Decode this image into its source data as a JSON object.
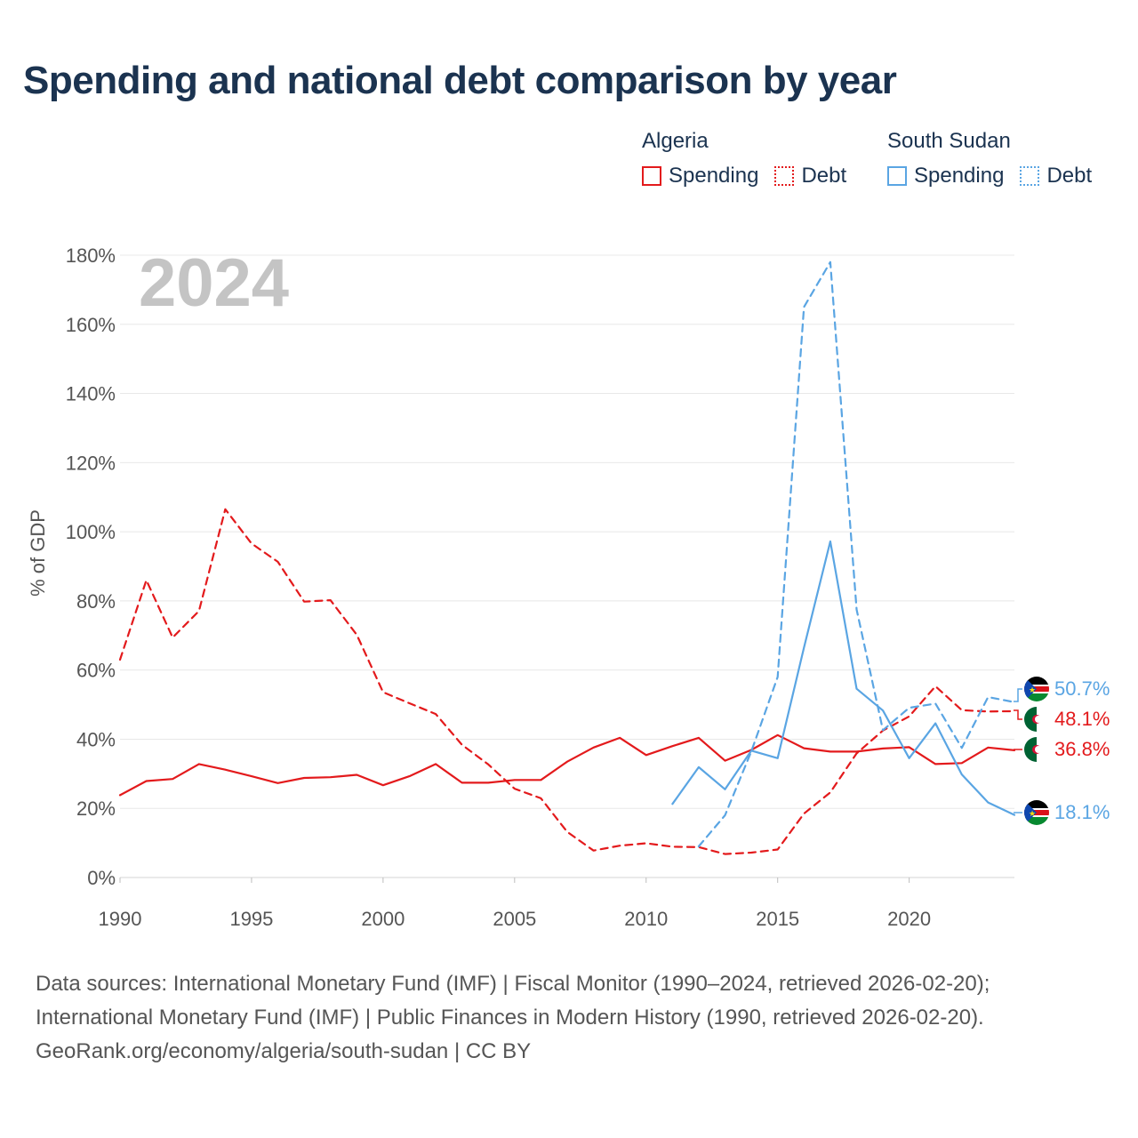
{
  "chart_data": {
    "type": "line",
    "title": "Spending and national debt comparison by year",
    "year_label": "2024",
    "ylabel": "% of GDP",
    "xlabel": "",
    "xlim": [
      1990,
      2024
    ],
    "ylim": [
      0,
      180
    ],
    "y_ticks": [
      0,
      20,
      40,
      60,
      80,
      100,
      120,
      140,
      160,
      180
    ],
    "y_tick_labels": [
      "0%",
      "20%",
      "40%",
      "60%",
      "80%",
      "100%",
      "120%",
      "140%",
      "160%",
      "180%"
    ],
    "x_ticks": [
      1990,
      1995,
      2000,
      2005,
      2010,
      2015,
      2020
    ],
    "x_tick_labels": [
      "1990",
      "1995",
      "2000",
      "2005",
      "2010",
      "2015",
      "2020"
    ],
    "grid": true,
    "legend": {
      "placement": "top-right",
      "groups": [
        {
          "country": "Algeria",
          "spending_label": "Spending",
          "debt_label": "Debt"
        },
        {
          "country": "South Sudan",
          "spending_label": "Spending",
          "debt_label": "Debt"
        }
      ]
    },
    "series": [
      {
        "name": "Algeria Spending",
        "country": "Algeria",
        "metric": "Spending",
        "style": "solid",
        "color": "#e31a1c",
        "end_label": "36.8%",
        "x": [
          1990,
          1991,
          1992,
          1993,
          1994,
          1995,
          1996,
          1997,
          1998,
          1999,
          2000,
          2001,
          2002,
          2003,
          2004,
          2005,
          2006,
          2007,
          2008,
          2009,
          2010,
          2011,
          2012,
          2013,
          2014,
          2015,
          2016,
          2017,
          2018,
          2019,
          2020,
          2021,
          2022,
          2023,
          2024
        ],
        "values": [
          23.8,
          27.9,
          28.5,
          32.8,
          31.2,
          29.3,
          27.3,
          28.8,
          29.0,
          29.7,
          26.7,
          29.3,
          32.8,
          27.4,
          27.4,
          28.2,
          28.2,
          33.5,
          37.6,
          40.4,
          35.4,
          38.0,
          40.4,
          33.8,
          36.9,
          41.2,
          37.4,
          36.4,
          36.4,
          37.3,
          37.7,
          32.8,
          33.1,
          37.6,
          36.8
        ]
      },
      {
        "name": "Algeria Debt",
        "country": "Algeria",
        "metric": "Debt",
        "style": "dashed",
        "color": "#e31a1c",
        "end_label": "48.1%",
        "x": [
          1990,
          1991,
          1992,
          1993,
          1994,
          1995,
          1996,
          1997,
          1998,
          1999,
          2000,
          2001,
          2002,
          2003,
          2004,
          2005,
          2006,
          2007,
          2008,
          2009,
          2010,
          2011,
          2012,
          2013,
          2014,
          2015,
          2016,
          2017,
          2018,
          2019,
          2020,
          2021,
          2022,
          2023,
          2024
        ],
        "values": [
          63.0,
          86.0,
          69.4,
          77.1,
          106.5,
          96.6,
          91.3,
          79.8,
          80.2,
          70.2,
          53.6,
          50.4,
          47.3,
          38.4,
          32.7,
          25.7,
          22.9,
          13.2,
          7.8,
          9.2,
          9.9,
          8.9,
          8.8,
          6.8,
          7.2,
          8.1,
          18.5,
          24.6,
          35.9,
          42.5,
          46.6,
          55.3,
          48.4,
          48.0,
          48.1
        ]
      },
      {
        "name": "South Sudan Spending",
        "country": "South Sudan",
        "metric": "Spending",
        "style": "solid",
        "color": "#5aa5e3",
        "end_label": "18.1%",
        "x": [
          2011,
          2012,
          2013,
          2014,
          2015,
          2016,
          2017,
          2018,
          2019,
          2020,
          2021,
          2022,
          2023,
          2024
        ],
        "values": [
          21.3,
          31.9,
          25.5,
          36.7,
          34.5,
          66.5,
          97.2,
          54.6,
          48.3,
          34.5,
          44.6,
          29.8,
          21.7,
          18.1
        ]
      },
      {
        "name": "South Sudan Debt",
        "country": "South Sudan",
        "metric": "Debt",
        "style": "dashed",
        "color": "#5aa5e3",
        "end_label": "50.7%",
        "x": [
          2012,
          2013,
          2014,
          2015,
          2016,
          2017,
          2018,
          2019,
          2020,
          2021,
          2022,
          2023,
          2024
        ],
        "values": [
          9.0,
          18.0,
          36.5,
          58.0,
          165.0,
          178.0,
          77.5,
          42.6,
          49.1,
          50.3,
          37.5,
          52.2,
          50.7
        ]
      }
    ]
  },
  "footer": {
    "line1": "Data sources: International Monetary Fund (IMF) | Fiscal Monitor (1990–2024, retrieved 2026-02-20);",
    "line2": "International Monetary Fund (IMF) | Public Finances in Modern History (1990, retrieved 2026-02-20).",
    "line3": "GeoRank.org/economy/algeria/south-sudan | CC BY"
  }
}
